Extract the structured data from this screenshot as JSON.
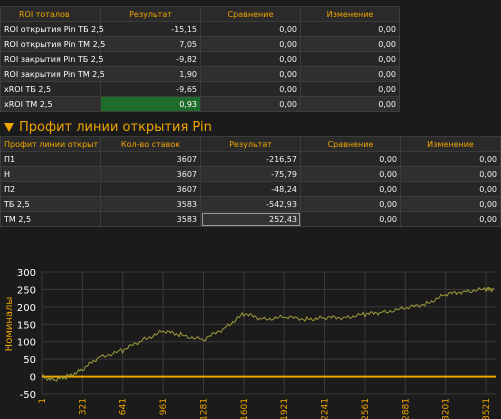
{
  "roi_table": {
    "headers": [
      "ROI тоталов",
      "Результат",
      "Сравнение",
      "Изменение"
    ],
    "rows": [
      {
        "label": "ROI открытия Pin ТБ 2,5",
        "result": "-15,15",
        "compare": "0,00",
        "change": "0,00"
      },
      {
        "label": "ROI открытия Pin ТМ 2,5",
        "result": "7,05",
        "compare": "0,00",
        "change": "0,00"
      },
      {
        "label": "ROI закрытия Pin ТБ 2,5",
        "result": "-9,82",
        "compare": "0,00",
        "change": "0,00"
      },
      {
        "label": "ROI закрытия Pin ТМ 2,5",
        "result": "1,90",
        "compare": "0,00",
        "change": "0,00"
      },
      {
        "label": "xROI ТБ 2,5",
        "result": "-9,65",
        "compare": "0,00",
        "change": "0,00"
      },
      {
        "label": "xROI ТМ 2,5",
        "result": "0,93",
        "compare": "0,00",
        "change": "0,00"
      }
    ],
    "highlight_color": "#1f6b2a"
  },
  "section": {
    "title": "Профит линии открытия Pin",
    "accent": "#f0a500"
  },
  "profit_table": {
    "headers": [
      "Профит линии открыт",
      "Кол-во ставок",
      "Результат",
      "Сравнение",
      "Изменение"
    ],
    "rows": [
      {
        "label": "П1",
        "bets": "3607",
        "result": "-216,57",
        "compare": "0,00",
        "change": "0,00"
      },
      {
        "label": "Н",
        "bets": "3607",
        "result": "-75,79",
        "compare": "0,00",
        "change": "0,00"
      },
      {
        "label": "П2",
        "bets": "3607",
        "result": "-48,24",
        "compare": "0,00",
        "change": "0,00"
      },
      {
        "label": "ТБ 2,5",
        "bets": "3583",
        "result": "-542,93",
        "compare": "0,00",
        "change": "0,00"
      },
      {
        "label": "ТМ 2,5",
        "bets": "3583",
        "result": "252,43",
        "compare": "0,00",
        "change": "0,00"
      }
    ]
  },
  "chart_data": {
    "type": "line",
    "ylabel": "Номиналы",
    "ylim": [
      -50,
      300
    ],
    "yticks": [
      -50,
      0,
      50,
      100,
      150,
      200,
      250,
      300
    ],
    "xlim": [
      1,
      3600
    ],
    "xticks": [
      1,
      321,
      641,
      961,
      1281,
      1601,
      1921,
      2241,
      2561,
      2881,
      3201,
      3521
    ],
    "grid": true,
    "zero_line_color": "#f0a500",
    "series": [
      {
        "color": "#9a9a3a",
        "x": [
          1,
          100,
          200,
          321,
          450,
          641,
          800,
          961,
          1100,
          1281,
          1450,
          1601,
          1750,
          1921,
          2100,
          2241,
          2400,
          2561,
          2700,
          2881,
          3050,
          3201,
          3350,
          3521,
          3583
        ],
        "values": [
          0,
          -10,
          0,
          20,
          55,
          75,
          105,
          130,
          120,
          105,
          140,
          180,
          165,
          170,
          165,
          168,
          170,
          178,
          185,
          195,
          210,
          235,
          245,
          250,
          252
        ]
      }
    ]
  }
}
